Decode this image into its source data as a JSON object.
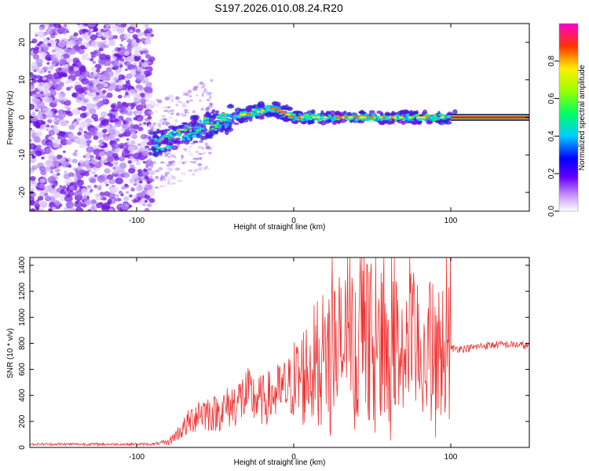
{
  "title": "S197.2026.010.08.24.R20",
  "colors": {
    "snr_line": "#ee3333",
    "signal_core": "#ff2020",
    "noise": "#7a22e6"
  },
  "chart_data": [
    {
      "type": "heatmap",
      "name": "spectrogram",
      "xlabel": "Height of straight line (km)",
      "ylabel": "Frequency (Hz)",
      "xlim": [
        -168,
        150
      ],
      "ylim": [
        -25,
        25
      ],
      "xticks": [
        -100,
        0,
        100
      ],
      "yticks": [
        -20,
        -10,
        0,
        10,
        20
      ],
      "colorbar": {
        "label": "Normalized spectral amplitude",
        "range": [
          0,
          1
        ],
        "ticks": [
          "0.0",
          "0.2",
          "0.4",
          "0.6",
          "0.8"
        ]
      },
      "ridge": {
        "x": [
          -85,
          -75,
          -65,
          -55,
          -45,
          -35,
          -28,
          -22,
          -15,
          -10,
          -5,
          0,
          20,
          40,
          60,
          80,
          100,
          150
        ],
        "y": [
          -7,
          -5.5,
          -3.5,
          -2,
          -1,
          0.5,
          1,
          1.5,
          2.5,
          2,
          1,
          0,
          0,
          0,
          0,
          0,
          0,
          0
        ]
      }
    },
    {
      "type": "line",
      "name": "snr",
      "xlabel": "Height of straight line (km)",
      "ylabel": "SNR (10 * v/v)",
      "xlim": [
        -168,
        150
      ],
      "ylim": [
        0,
        1460
      ],
      "xticks": [
        -100,
        0,
        100
      ],
      "yticks": [
        0,
        200,
        400,
        600,
        800,
        1000,
        1200,
        1400
      ],
      "envelope": {
        "x": [
          -168,
          -90,
          -80,
          -70,
          -60,
          -50,
          -40,
          -30,
          -20,
          -10,
          0,
          10,
          20,
          30,
          40,
          50,
          60,
          70,
          80,
          90,
          100,
          110,
          120,
          130,
          140,
          150
        ],
        "y": [
          25,
          25,
          40,
          150,
          280,
          260,
          320,
          400,
          360,
          420,
          480,
          600,
          720,
          780,
          800,
          820,
          760,
          760,
          780,
          720,
          760,
          760,
          780,
          790,
          790,
          780
        ]
      }
    }
  ]
}
